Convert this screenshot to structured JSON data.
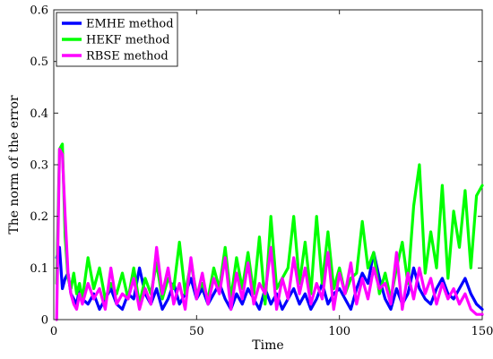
{
  "chart_data": {
    "type": "line",
    "title": "",
    "xlabel": "Time",
    "ylabel": "The norm of the error",
    "xlim": [
      0,
      150
    ],
    "ylim": [
      0,
      0.6
    ],
    "xticks": [
      0,
      50,
      100,
      150
    ],
    "yticks": [
      0,
      0.1,
      0.2,
      0.3,
      0.4,
      0.5,
      0.6
    ],
    "xtick_labels": [
      "0",
      "50",
      "100",
      "150"
    ],
    "ytick_labels": [
      "0",
      "0.1",
      "0.2",
      "0.3",
      "0.4",
      "0.5",
      "0.6"
    ],
    "grid": false,
    "legend_position": "top-left",
    "series": [
      {
        "name": "EMHE method",
        "color": "#0000ff",
        "x": [
          1,
          2,
          3,
          4,
          5,
          6,
          7,
          8,
          9,
          10,
          12,
          14,
          16,
          18,
          20,
          22,
          24,
          26,
          28,
          30,
          32,
          34,
          36,
          38,
          40,
          42,
          44,
          46,
          48,
          50,
          52,
          54,
          56,
          58,
          60,
          62,
          64,
          66,
          68,
          70,
          72,
          74,
          76,
          78,
          80,
          82,
          84,
          86,
          88,
          90,
          92,
          94,
          96,
          98,
          100,
          102,
          104,
          106,
          108,
          110,
          112,
          114,
          116,
          118,
          120,
          122,
          124,
          126,
          128,
          130,
          132,
          134,
          136,
          138,
          140,
          142,
          144,
          146,
          148,
          150
        ],
        "y": [
          0.12,
          0.14,
          0.06,
          0.08,
          0.09,
          0.05,
          0.04,
          0.03,
          0.06,
          0.04,
          0.03,
          0.05,
          0.02,
          0.04,
          0.06,
          0.03,
          0.02,
          0.05,
          0.04,
          0.1,
          0.05,
          0.03,
          0.06,
          0.02,
          0.04,
          0.07,
          0.03,
          0.05,
          0.08,
          0.04,
          0.06,
          0.03,
          0.05,
          0.07,
          0.04,
          0.02,
          0.05,
          0.03,
          0.06,
          0.04,
          0.02,
          0.06,
          0.03,
          0.05,
          0.02,
          0.04,
          0.06,
          0.03,
          0.05,
          0.02,
          0.04,
          0.07,
          0.03,
          0.05,
          0.06,
          0.04,
          0.02,
          0.06,
          0.09,
          0.07,
          0.13,
          0.08,
          0.04,
          0.02,
          0.06,
          0.03,
          0.05,
          0.1,
          0.06,
          0.04,
          0.03,
          0.06,
          0.08,
          0.05,
          0.04,
          0.06,
          0.08,
          0.05,
          0.03,
          0.02
        ]
      },
      {
        "name": "HEKF method",
        "color": "#00ff00",
        "x": [
          1,
          2,
          3,
          4,
          5,
          6,
          7,
          8,
          9,
          10,
          12,
          14,
          16,
          18,
          20,
          22,
          24,
          26,
          28,
          30,
          32,
          34,
          36,
          38,
          40,
          42,
          44,
          46,
          48,
          50,
          52,
          54,
          56,
          58,
          60,
          62,
          64,
          66,
          68,
          70,
          72,
          74,
          76,
          78,
          80,
          82,
          84,
          86,
          88,
          90,
          92,
          94,
          96,
          98,
          100,
          102,
          104,
          106,
          108,
          110,
          112,
          114,
          116,
          118,
          120,
          122,
          124,
          126,
          128,
          130,
          132,
          134,
          136,
          138,
          140,
          142,
          144,
          146,
          148,
          150
        ],
        "y": [
          0.07,
          0.33,
          0.34,
          0.16,
          0.08,
          0.06,
          0.09,
          0.05,
          0.07,
          0.04,
          0.12,
          0.06,
          0.1,
          0.04,
          0.07,
          0.05,
          0.09,
          0.04,
          0.1,
          0.03,
          0.08,
          0.05,
          0.11,
          0.04,
          0.08,
          0.06,
          0.15,
          0.05,
          0.11,
          0.05,
          0.07,
          0.04,
          0.1,
          0.06,
          0.14,
          0.04,
          0.12,
          0.06,
          0.13,
          0.05,
          0.16,
          0.03,
          0.2,
          0.06,
          0.08,
          0.1,
          0.2,
          0.07,
          0.15,
          0.05,
          0.2,
          0.07,
          0.17,
          0.06,
          0.1,
          0.05,
          0.08,
          0.09,
          0.19,
          0.1,
          0.13,
          0.05,
          0.09,
          0.04,
          0.1,
          0.15,
          0.07,
          0.22,
          0.3,
          0.09,
          0.17,
          0.1,
          0.26,
          0.08,
          0.21,
          0.14,
          0.25,
          0.1,
          0.24,
          0.26
        ]
      },
      {
        "name": "RBSE method",
        "color": "#ff00ff",
        "x": [
          1,
          2,
          3,
          4,
          5,
          6,
          7,
          8,
          9,
          10,
          12,
          14,
          16,
          18,
          20,
          22,
          24,
          26,
          28,
          30,
          32,
          34,
          36,
          38,
          40,
          42,
          44,
          46,
          48,
          50,
          52,
          54,
          56,
          58,
          60,
          62,
          64,
          66,
          68,
          70,
          72,
          74,
          76,
          78,
          80,
          82,
          84,
          86,
          88,
          90,
          92,
          94,
          96,
          98,
          100,
          102,
          104,
          106,
          108,
          110,
          112,
          114,
          116,
          118,
          120,
          122,
          124,
          126,
          128,
          130,
          132,
          134,
          136,
          138,
          140,
          142,
          144,
          146,
          148,
          150
        ],
        "y": [
          0.0,
          0.33,
          0.32,
          0.2,
          0.09,
          0.05,
          0.03,
          0.02,
          0.05,
          0.03,
          0.07,
          0.04,
          0.06,
          0.02,
          0.1,
          0.03,
          0.05,
          0.04,
          0.08,
          0.02,
          0.06,
          0.03,
          0.14,
          0.05,
          0.1,
          0.03,
          0.07,
          0.02,
          0.12,
          0.04,
          0.09,
          0.03,
          0.08,
          0.05,
          0.12,
          0.02,
          0.09,
          0.04,
          0.11,
          0.03,
          0.07,
          0.05,
          0.14,
          0.02,
          0.08,
          0.04,
          0.12,
          0.05,
          0.1,
          0.03,
          0.07,
          0.04,
          0.13,
          0.02,
          0.09,
          0.05,
          0.11,
          0.03,
          0.08,
          0.04,
          0.1,
          0.06,
          0.07,
          0.03,
          0.13,
          0.02,
          0.09,
          0.04,
          0.1,
          0.05,
          0.08,
          0.03,
          0.07,
          0.04,
          0.06,
          0.03,
          0.05,
          0.02,
          0.01,
          0.01
        ]
      }
    ]
  }
}
